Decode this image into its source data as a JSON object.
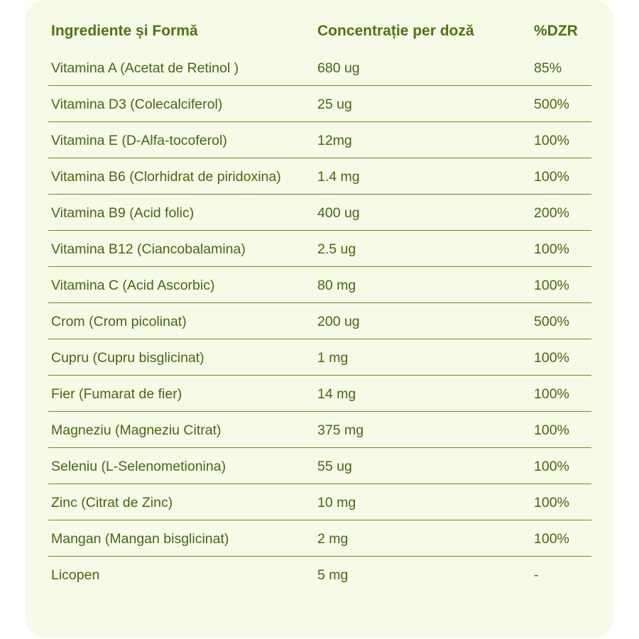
{
  "table": {
    "headers": {
      "ingredient": "Ingrediente și Formă",
      "concentration": "Concentrație per doză",
      "dzr": "%DZR"
    },
    "rows": [
      {
        "ingredient": "Vitamina A (Acetat de Retinol )",
        "concentration": "680 ug",
        "dzr": "85%"
      },
      {
        "ingredient": "Vitamina D3 (Colecalciferol)",
        "concentration": "25 ug",
        "dzr": "500%"
      },
      {
        "ingredient": "Vitamina E (D-Alfa-tocoferol)",
        "concentration": "12mg",
        "dzr": "100%"
      },
      {
        "ingredient": "Vitamina B6 (Clorhidrat de piridoxina)",
        "concentration": "1.4 mg",
        "dzr": "100%"
      },
      {
        "ingredient": "Vitamina B9 (Acid folic)",
        "concentration": "400 ug",
        "dzr": "200%"
      },
      {
        "ingredient": "Vitamina B12 (Ciancobalamina)",
        "concentration": "2.5 ug",
        "dzr": "100%"
      },
      {
        "ingredient": "Vitamina C (Acid Ascorbic)",
        "concentration": "80 mg",
        "dzr": "100%"
      },
      {
        "ingredient": "Crom (Crom picolinat)",
        "concentration": "200 ug",
        "dzr": "500%"
      },
      {
        "ingredient": "Cupru (Cupru bisglicinat)",
        "concentration": "1 mg",
        "dzr": "100%"
      },
      {
        "ingredient": "Fier (Fumarat de fier)",
        "concentration": "14 mg",
        "dzr": "100%"
      },
      {
        "ingredient": "Magneziu (Magneziu Citrat)",
        "concentration": "375 mg",
        "dzr": "100%"
      },
      {
        "ingredient": "Seleniu (L-Selenometionina)",
        "concentration": "55 ug",
        "dzr": "100%"
      },
      {
        "ingredient": "Zinc (Citrat de Zinc)",
        "concentration": "10 mg",
        "dzr": "100%"
      },
      {
        "ingredient": "Mangan (Mangan bisglicinat)",
        "concentration": "2 mg",
        "dzr": "100%"
      },
      {
        "ingredient": "Licopen",
        "concentration": "5 mg",
        "dzr": "-"
      }
    ]
  },
  "colors": {
    "card_background": "#f6fae6",
    "text": "#4a6a14",
    "divider": "#6f8a2a"
  }
}
